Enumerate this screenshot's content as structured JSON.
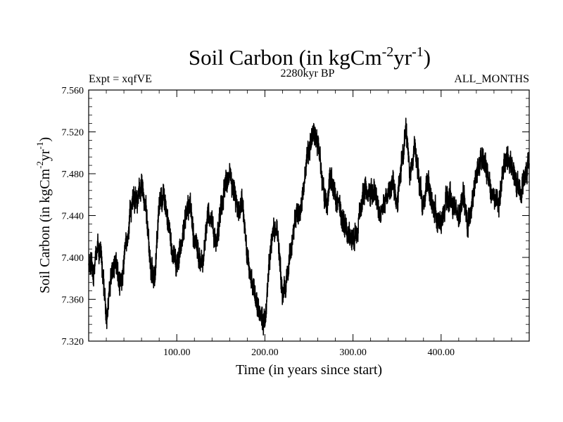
{
  "chart_data": {
    "type": "line",
    "title": "Soil Carbon (in kgCm",
    "title_sup1": "-2",
    "title_mid": "yr",
    "title_sup2": "-1",
    "title_end": ")",
    "subtitle_left": "Expt = xqfVE",
    "subtitle_center": "2280kyr BP",
    "subtitle_right": "ALL_MONTHS",
    "xlabel": "Time (in years since start)",
    "ylabel": "Soil Carbon (in kgCm",
    "ylabel_sup1": "-2",
    "ylabel_mid": "yr",
    "ylabel_sup2": "-1",
    "ylabel_end": ")",
    "xlim": [
      0,
      500
    ],
    "ylim": [
      7.32,
      7.56
    ],
    "x_ticks": [
      100,
      200,
      300,
      400
    ],
    "x_tick_labels": [
      "100.00",
      "200.00",
      "300.00",
      "400.00"
    ],
    "y_ticks": [
      7.32,
      7.36,
      7.4,
      7.44,
      7.48,
      7.52,
      7.56
    ],
    "y_tick_labels": [
      "7.320",
      "7.360",
      "7.400",
      "7.440",
      "7.480",
      "7.520",
      "7.560"
    ],
    "series": [
      {
        "name": "Soil Carbon",
        "x": [
          0,
          5,
          10,
          15,
          20,
          25,
          30,
          35,
          40,
          45,
          50,
          55,
          60,
          65,
          70,
          75,
          80,
          85,
          90,
          95,
          100,
          105,
          110,
          115,
          120,
          125,
          130,
          135,
          140,
          145,
          150,
          155,
          160,
          165,
          170,
          175,
          180,
          185,
          190,
          195,
          200,
          205,
          210,
          215,
          220,
          225,
          230,
          235,
          240,
          245,
          250,
          255,
          260,
          265,
          270,
          275,
          280,
          285,
          290,
          295,
          300,
          305,
          310,
          315,
          320,
          325,
          330,
          335,
          340,
          345,
          350,
          355,
          360,
          365,
          370,
          375,
          380,
          385,
          390,
          395,
          400,
          405,
          410,
          415,
          420,
          425,
          430,
          435,
          440,
          445,
          450,
          455,
          460,
          465,
          470,
          475,
          480,
          485,
          490,
          495,
          500
        ],
        "values": [
          7.392,
          7.384,
          7.412,
          7.398,
          7.338,
          7.382,
          7.396,
          7.375,
          7.392,
          7.432,
          7.458,
          7.452,
          7.468,
          7.452,
          7.392,
          7.378,
          7.452,
          7.462,
          7.438,
          7.402,
          7.392,
          7.408,
          7.442,
          7.448,
          7.418,
          7.402,
          7.398,
          7.442,
          7.432,
          7.412,
          7.448,
          7.468,
          7.482,
          7.462,
          7.442,
          7.452,
          7.402,
          7.378,
          7.358,
          7.348,
          7.338,
          7.395,
          7.428,
          7.422,
          7.358,
          7.382,
          7.412,
          7.438,
          7.446,
          7.472,
          7.505,
          7.522,
          7.508,
          7.472,
          7.448,
          7.478,
          7.462,
          7.446,
          7.432,
          7.418,
          7.415,
          7.428,
          7.455,
          7.466,
          7.458,
          7.464,
          7.438,
          7.452,
          7.458,
          7.472,
          7.448,
          7.488,
          7.522,
          7.478,
          7.508,
          7.472,
          7.452,
          7.472,
          7.452,
          7.438,
          7.432,
          7.452,
          7.458,
          7.448,
          7.436,
          7.462,
          7.432,
          7.452,
          7.478,
          7.496,
          7.488,
          7.472,
          7.458,
          7.448,
          7.482,
          7.495,
          7.488,
          7.472,
          7.462,
          7.478,
          7.492
        ]
      }
    ]
  }
}
